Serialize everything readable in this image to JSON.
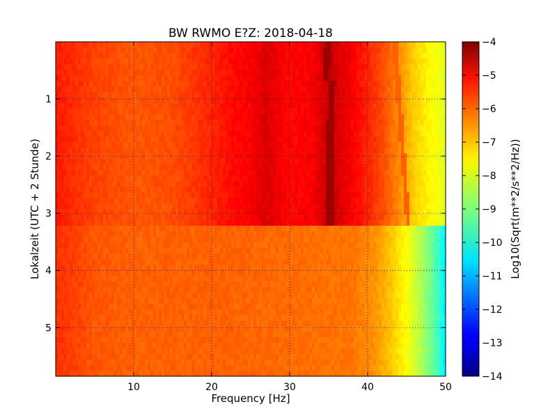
{
  "chart_data": {
    "type": "heatmap",
    "title": "BW RWMO E?Z: 2018-04-18",
    "xlabel": "Frequency [Hz]",
    "ylabel": "Lokalzeit (UTC + 2 Stunde)",
    "xlim": [
      0,
      50
    ],
    "ylim": [
      0,
      5.85
    ],
    "y_inverted": true,
    "x_ticks": [
      10,
      20,
      30,
      40,
      50
    ],
    "y_ticks": [
      1,
      2,
      3,
      4,
      5
    ],
    "grid": true,
    "colormap": "jet",
    "colorbar": {
      "label": "Log10(Sqrt(m**2/s**2/Hz))",
      "range": [
        -14,
        -4
      ],
      "ticks": [
        -4,
        -5,
        -6,
        -7,
        -8,
        -9,
        -10,
        -11,
        -12,
        -13,
        -14
      ]
    },
    "regime_change_time": 3.2,
    "spectrum_early": [
      {
        "f": 0,
        "v": -5.5
      },
      {
        "f": 5,
        "v": -5.9
      },
      {
        "f": 10,
        "v": -6.1
      },
      {
        "f": 15,
        "v": -6.0
      },
      {
        "f": 20,
        "v": -5.6
      },
      {
        "f": 22,
        "v": -5.4
      },
      {
        "f": 25,
        "v": -5.2
      },
      {
        "f": 27,
        "v": -4.9
      },
      {
        "f": 30,
        "v": -5.3
      },
      {
        "f": 33,
        "v": -5.2
      },
      {
        "f": 35,
        "v": -4.7
      },
      {
        "f": 37,
        "v": -5.0
      },
      {
        "f": 40,
        "v": -5.6
      },
      {
        "f": 42,
        "v": -6.0
      },
      {
        "f": 44,
        "v": -6.6
      },
      {
        "f": 46,
        "v": -7.3
      },
      {
        "f": 48,
        "v": -7.7
      },
      {
        "f": 50,
        "v": -8.0
      }
    ],
    "spectrum_late": [
      {
        "f": 0,
        "v": -5.7
      },
      {
        "f": 5,
        "v": -6.1
      },
      {
        "f": 10,
        "v": -6.2
      },
      {
        "f": 20,
        "v": -6.2
      },
      {
        "f": 30,
        "v": -6.3
      },
      {
        "f": 38,
        "v": -6.4
      },
      {
        "f": 41,
        "v": -6.7
      },
      {
        "f": 43,
        "v": -7.2
      },
      {
        "f": 45,
        "v": -7.8
      },
      {
        "f": 47,
        "v": -8.6
      },
      {
        "f": 49,
        "v": -9.6
      },
      {
        "f": 50,
        "v": -10.5
      }
    ],
    "narrowband_line": [
      {
        "t": 0.0,
        "f": 35.0
      },
      {
        "t": 0.65,
        "f": 34.6
      },
      {
        "t": 0.7,
        "f": 35.4
      },
      {
        "t": 1.5,
        "f": 35.3
      },
      {
        "t": 2.5,
        "f": 35.2
      },
      {
        "t": 3.2,
        "f": 35.3
      }
    ],
    "drifting_line": [
      {
        "t": 0.0,
        "f": 43.5
      },
      {
        "t": 3.2,
        "f": 45.2
      }
    ]
  }
}
